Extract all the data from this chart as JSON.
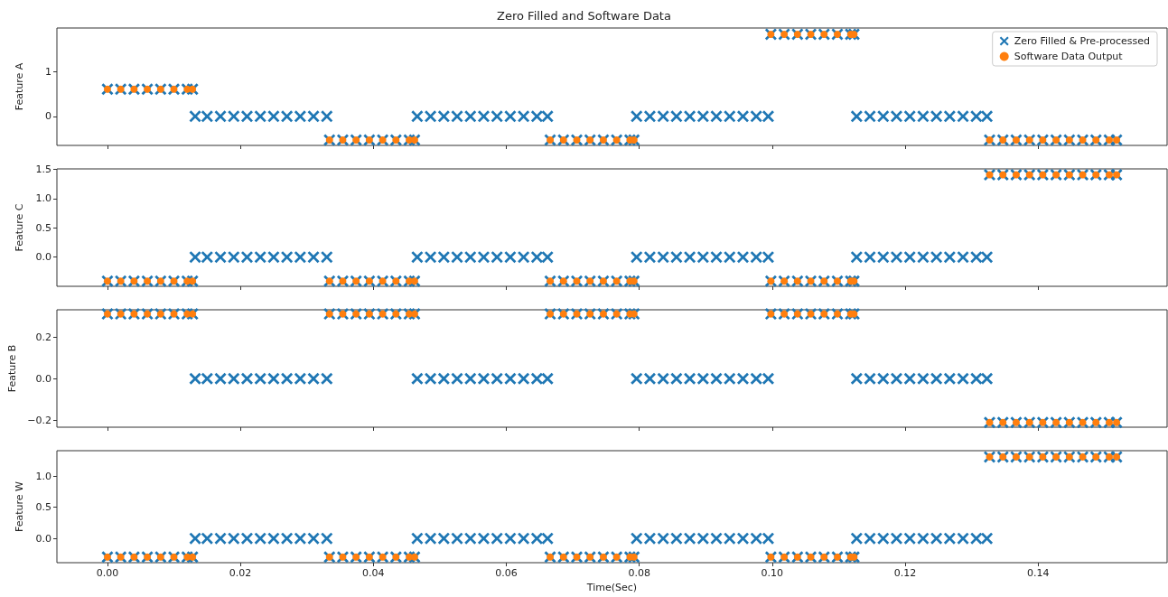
{
  "chart_data": [
    {
      "type": "scatter",
      "title": "Zero Filled and Software Data",
      "ylabel": "Feature A",
      "legend": "top right",
      "tick_labels": "y",
      "xlim": [
        -0.0076,
        0.1594
      ],
      "xticks": [
        {
          "value": 0,
          "label": null
        },
        {
          "value": 0.02,
          "label": null
        },
        {
          "value": 0.04,
          "label": null
        },
        {
          "value": 0.06,
          "label": null
        },
        {
          "value": 0.08,
          "label": null
        },
        {
          "value": 0.1,
          "label": null
        },
        {
          "value": 0.12,
          "label": null
        },
        {
          "value": 0.14,
          "label": null
        }
      ],
      "ylim": [
        -0.65,
        1.98
      ],
      "yticks": [
        0,
        1
      ],
      "series": [
        {
          "name": "Zero Filled & Pre-processed",
          "color": "#1f77b4",
          "marker": "cross",
          "x": [
            0,
            0.002,
            0.004,
            0.006,
            0.008,
            0.01,
            0.012,
            0.0128,
            0.0132,
            0.015,
            0.017,
            0.019,
            0.021,
            0.023,
            0.025,
            0.027,
            0.029,
            0.031,
            0.033,
            0.0334,
            0.0354,
            0.0374,
            0.0394,
            0.0414,
            0.0434,
            0.0454,
            0.0462,
            0.0466,
            0.0486,
            0.0506,
            0.0526,
            0.0546,
            0.0566,
            0.0586,
            0.0606,
            0.0626,
            0.0646,
            0.0662,
            0.0666,
            0.0686,
            0.0706,
            0.0726,
            0.0746,
            0.0766,
            0.0786,
            0.0792,
            0.0796,
            0.0816,
            0.0836,
            0.0856,
            0.0876,
            0.0896,
            0.0916,
            0.0936,
            0.0956,
            0.0976,
            0.0994,
            0.0998,
            0.1018,
            0.1038,
            0.1058,
            0.1078,
            0.1098,
            0.1118,
            0.1123,
            0.1127,
            0.1147,
            0.1167,
            0.1187,
            0.1207,
            0.1227,
            0.1247,
            0.1267,
            0.1287,
            0.1307,
            0.1323,
            0.1327,
            0.1347,
            0.1367,
            0.1387,
            0.1407,
            0.1427,
            0.1447,
            0.1467,
            0.1487,
            0.1507,
            0.1518
          ],
          "values": [
            0.61,
            0.61,
            0.61,
            0.61,
            0.61,
            0.61,
            0.61,
            0.61,
            0,
            0,
            0,
            0,
            0,
            0,
            0,
            0,
            0,
            0,
            0,
            -0.53,
            -0.53,
            -0.53,
            -0.53,
            -0.53,
            -0.53,
            -0.53,
            -0.53,
            0,
            0,
            0,
            0,
            0,
            0,
            0,
            0,
            0,
            0,
            0,
            -0.53,
            -0.53,
            -0.53,
            -0.53,
            -0.53,
            -0.53,
            -0.53,
            -0.53,
            0,
            0,
            0,
            0,
            0,
            0,
            0,
            0,
            0,
            0,
            0,
            1.84,
            1.84,
            1.84,
            1.84,
            1.84,
            1.84,
            1.84,
            1.84,
            0,
            0,
            0,
            0,
            0,
            0,
            0,
            0,
            0,
            0,
            0,
            -0.53,
            -0.53,
            -0.53,
            -0.53,
            -0.53,
            -0.53,
            -0.53,
            -0.53,
            -0.53,
            -0.53,
            -0.53
          ]
        },
        {
          "name": "Software Data Output",
          "color": "#ff7f0e",
          "marker": "circle",
          "x": [
            0,
            0.002,
            0.004,
            0.006,
            0.008,
            0.01,
            0.012,
            0.0128,
            0.0334,
            0.0354,
            0.0374,
            0.0394,
            0.0414,
            0.0434,
            0.0454,
            0.0462,
            0.0666,
            0.0686,
            0.0706,
            0.0726,
            0.0746,
            0.0766,
            0.0786,
            0.0792,
            0.0998,
            0.1018,
            0.1038,
            0.1058,
            0.1078,
            0.1098,
            0.1118,
            0.1123,
            0.1327,
            0.1347,
            0.1367,
            0.1387,
            0.1407,
            0.1427,
            0.1447,
            0.1467,
            0.1487,
            0.1507,
            0.1518
          ],
          "values": [
            0.61,
            0.61,
            0.61,
            0.61,
            0.61,
            0.61,
            0.61,
            0.61,
            -0.53,
            -0.53,
            -0.53,
            -0.53,
            -0.53,
            -0.53,
            -0.53,
            -0.53,
            -0.53,
            -0.53,
            -0.53,
            -0.53,
            -0.53,
            -0.53,
            -0.53,
            -0.53,
            1.84,
            1.84,
            1.84,
            1.84,
            1.84,
            1.84,
            1.84,
            1.84,
            -0.53,
            -0.53,
            -0.53,
            -0.53,
            -0.53,
            -0.53,
            -0.53,
            -0.53,
            -0.53,
            -0.53,
            -0.53
          ]
        }
      ]
    },
    {
      "type": "scatter",
      "ylabel": "Feature C",
      "tick_labels": "y",
      "xlim": [
        -0.0076,
        0.1594
      ],
      "xticks": [
        {
          "value": 0,
          "label": null
        },
        {
          "value": 0.02,
          "label": null
        },
        {
          "value": 0.04,
          "label": null
        },
        {
          "value": 0.06,
          "label": null
        },
        {
          "value": 0.08,
          "label": null
        },
        {
          "value": 0.1,
          "label": null
        },
        {
          "value": 0.12,
          "label": null
        },
        {
          "value": 0.14,
          "label": null
        }
      ],
      "ylim": [
        -0.5,
        1.51
      ],
      "yticks": [
        {
          "value": 0,
          "label": "0.0"
        },
        {
          "value": 0.5,
          "label": "0.5"
        },
        {
          "value": 1,
          "label": "1.0"
        },
        {
          "value": 1.5,
          "label": "1.5"
        }
      ],
      "series": [
        {
          "color": "#1f77b4",
          "marker": "cross",
          "x": [
            0,
            0.002,
            0.004,
            0.006,
            0.008,
            0.01,
            0.012,
            0.0128,
            0.0132,
            0.015,
            0.017,
            0.019,
            0.021,
            0.023,
            0.025,
            0.027,
            0.029,
            0.031,
            0.033,
            0.0334,
            0.0354,
            0.0374,
            0.0394,
            0.0414,
            0.0434,
            0.0454,
            0.0462,
            0.0466,
            0.0486,
            0.0506,
            0.0526,
            0.0546,
            0.0566,
            0.0586,
            0.0606,
            0.0626,
            0.0646,
            0.0662,
            0.0666,
            0.0686,
            0.0706,
            0.0726,
            0.0746,
            0.0766,
            0.0786,
            0.0792,
            0.0796,
            0.0816,
            0.0836,
            0.0856,
            0.0876,
            0.0896,
            0.0916,
            0.0936,
            0.0956,
            0.0976,
            0.0994,
            0.0998,
            0.1018,
            0.1038,
            0.1058,
            0.1078,
            0.1098,
            0.1118,
            0.1123,
            0.1127,
            0.1147,
            0.1167,
            0.1187,
            0.1207,
            0.1227,
            0.1247,
            0.1267,
            0.1287,
            0.1307,
            0.1323,
            0.1327,
            0.1347,
            0.1367,
            0.1387,
            0.1407,
            0.1427,
            0.1447,
            0.1467,
            0.1487,
            0.1507,
            0.1518
          ],
          "values": [
            -0.41,
            -0.41,
            -0.41,
            -0.41,
            -0.41,
            -0.41,
            -0.41,
            -0.41,
            0,
            0,
            0,
            0,
            0,
            0,
            0,
            0,
            0,
            0,
            0,
            -0.41,
            -0.41,
            -0.41,
            -0.41,
            -0.41,
            -0.41,
            -0.41,
            -0.41,
            0,
            0,
            0,
            0,
            0,
            0,
            0,
            0,
            0,
            0,
            0,
            -0.41,
            -0.41,
            -0.41,
            -0.41,
            -0.41,
            -0.41,
            -0.41,
            -0.41,
            0,
            0,
            0,
            0,
            0,
            0,
            0,
            0,
            0,
            0,
            0,
            -0.41,
            -0.41,
            -0.41,
            -0.41,
            -0.41,
            -0.41,
            -0.41,
            -0.41,
            0,
            0,
            0,
            0,
            0,
            0,
            0,
            0,
            0,
            0,
            0,
            1.41,
            1.41,
            1.41,
            1.41,
            1.41,
            1.41,
            1.41,
            1.41,
            1.41,
            1.41,
            1.41
          ]
        },
        {
          "color": "#ff7f0e",
          "marker": "circle",
          "x": [
            0,
            0.002,
            0.004,
            0.006,
            0.008,
            0.01,
            0.012,
            0.0128,
            0.0334,
            0.0354,
            0.0374,
            0.0394,
            0.0414,
            0.0434,
            0.0454,
            0.0462,
            0.0666,
            0.0686,
            0.0706,
            0.0726,
            0.0746,
            0.0766,
            0.0786,
            0.0792,
            0.0998,
            0.1018,
            0.1038,
            0.1058,
            0.1078,
            0.1098,
            0.1118,
            0.1123,
            0.1327,
            0.1347,
            0.1367,
            0.1387,
            0.1407,
            0.1427,
            0.1447,
            0.1467,
            0.1487,
            0.1507,
            0.1518
          ],
          "values": [
            -0.41,
            -0.41,
            -0.41,
            -0.41,
            -0.41,
            -0.41,
            -0.41,
            -0.41,
            -0.41,
            -0.41,
            -0.41,
            -0.41,
            -0.41,
            -0.41,
            -0.41,
            -0.41,
            -0.41,
            -0.41,
            -0.41,
            -0.41,
            -0.41,
            -0.41,
            -0.41,
            -0.41,
            -0.41,
            -0.41,
            -0.41,
            -0.41,
            -0.41,
            -0.41,
            -0.41,
            -0.41,
            1.41,
            1.41,
            1.41,
            1.41,
            1.41,
            1.41,
            1.41,
            1.41,
            1.41,
            1.41,
            1.41
          ]
        }
      ]
    },
    {
      "type": "scatter",
      "ylabel": "Feature B",
      "tick_labels": "y",
      "xlim": [
        -0.0076,
        0.1594
      ],
      "xticks": [
        {
          "value": 0,
          "label": null
        },
        {
          "value": 0.02,
          "label": null
        },
        {
          "value": 0.04,
          "label": null
        },
        {
          "value": 0.06,
          "label": null
        },
        {
          "value": 0.08,
          "label": null
        },
        {
          "value": 0.1,
          "label": null
        },
        {
          "value": 0.12,
          "label": null
        },
        {
          "value": 0.14,
          "label": null
        }
      ],
      "ylim": [
        -0.233,
        0.33
      ],
      "yticks": [
        {
          "value": -0.2,
          "label": "−0.2"
        },
        {
          "value": 0,
          "label": "0.0"
        },
        {
          "value": 0.2,
          "label": "0.2"
        }
      ],
      "series": [
        {
          "color": "#1f77b4",
          "marker": "cross",
          "x": [
            0,
            0.002,
            0.004,
            0.006,
            0.008,
            0.01,
            0.012,
            0.0128,
            0.0132,
            0.015,
            0.017,
            0.019,
            0.021,
            0.023,
            0.025,
            0.027,
            0.029,
            0.031,
            0.033,
            0.0334,
            0.0354,
            0.0374,
            0.0394,
            0.0414,
            0.0434,
            0.0454,
            0.0462,
            0.0466,
            0.0486,
            0.0506,
            0.0526,
            0.0546,
            0.0566,
            0.0586,
            0.0606,
            0.0626,
            0.0646,
            0.0662,
            0.0666,
            0.0686,
            0.0706,
            0.0726,
            0.0746,
            0.0766,
            0.0786,
            0.0792,
            0.0796,
            0.0816,
            0.0836,
            0.0856,
            0.0876,
            0.0896,
            0.0916,
            0.0936,
            0.0956,
            0.0976,
            0.0994,
            0.0998,
            0.1018,
            0.1038,
            0.1058,
            0.1078,
            0.1098,
            0.1118,
            0.1123,
            0.1127,
            0.1147,
            0.1167,
            0.1187,
            0.1207,
            0.1227,
            0.1247,
            0.1267,
            0.1287,
            0.1307,
            0.1323,
            0.1327,
            0.1347,
            0.1367,
            0.1387,
            0.1407,
            0.1427,
            0.1447,
            0.1467,
            0.1487,
            0.1507,
            0.1518
          ],
          "values": [
            0.31,
            0.31,
            0.31,
            0.31,
            0.31,
            0.31,
            0.31,
            0.31,
            0,
            0,
            0,
            0,
            0,
            0,
            0,
            0,
            0,
            0,
            0,
            0.31,
            0.31,
            0.31,
            0.31,
            0.31,
            0.31,
            0.31,
            0.31,
            0,
            0,
            0,
            0,
            0,
            0,
            0,
            0,
            0,
            0,
            0,
            0.31,
            0.31,
            0.31,
            0.31,
            0.31,
            0.31,
            0.31,
            0.31,
            0,
            0,
            0,
            0,
            0,
            0,
            0,
            0,
            0,
            0,
            0,
            0.31,
            0.31,
            0.31,
            0.31,
            0.31,
            0.31,
            0.31,
            0.31,
            0,
            0,
            0,
            0,
            0,
            0,
            0,
            0,
            0,
            0,
            0,
            -0.21,
            -0.21,
            -0.21,
            -0.21,
            -0.21,
            -0.21,
            -0.21,
            -0.21,
            -0.21,
            -0.21,
            -0.21
          ]
        },
        {
          "color": "#ff7f0e",
          "marker": "circle",
          "x": [
            0,
            0.002,
            0.004,
            0.006,
            0.008,
            0.01,
            0.012,
            0.0128,
            0.0334,
            0.0354,
            0.0374,
            0.0394,
            0.0414,
            0.0434,
            0.0454,
            0.0462,
            0.0666,
            0.0686,
            0.0706,
            0.0726,
            0.0746,
            0.0766,
            0.0786,
            0.0792,
            0.0998,
            0.1018,
            0.1038,
            0.1058,
            0.1078,
            0.1098,
            0.1118,
            0.1123,
            0.1327,
            0.1347,
            0.1367,
            0.1387,
            0.1407,
            0.1427,
            0.1447,
            0.1467,
            0.1487,
            0.1507,
            0.1518
          ],
          "values": [
            0.31,
            0.31,
            0.31,
            0.31,
            0.31,
            0.31,
            0.31,
            0.31,
            0.31,
            0.31,
            0.31,
            0.31,
            0.31,
            0.31,
            0.31,
            0.31,
            0.31,
            0.31,
            0.31,
            0.31,
            0.31,
            0.31,
            0.31,
            0.31,
            0.31,
            0.31,
            0.31,
            0.31,
            0.31,
            0.31,
            0.31,
            0.31,
            -0.21,
            -0.21,
            -0.21,
            -0.21,
            -0.21,
            -0.21,
            -0.21,
            -0.21,
            -0.21,
            -0.21,
            -0.21
          ]
        }
      ]
    },
    {
      "type": "scatter",
      "ylabel": "Feature W",
      "xlabel": "Time(Sec)",
      "xlim": [
        -0.0076,
        0.1594
      ],
      "xticks": [
        {
          "value": 0,
          "label": "0.00"
        },
        {
          "value": 0.02,
          "label": "0.02"
        },
        {
          "value": 0.04,
          "label": "0.04"
        },
        {
          "value": 0.06,
          "label": "0.06"
        },
        {
          "value": 0.08,
          "label": "0.08"
        },
        {
          "value": 0.1,
          "label": "0.10"
        },
        {
          "value": 0.12,
          "label": "0.12"
        },
        {
          "value": 0.14,
          "label": "0.14"
        }
      ],
      "ylim": [
        -0.39,
        1.41
      ],
      "yticks": [
        {
          "value": 0,
          "label": "0.0"
        },
        {
          "value": 0.5,
          "label": "0.5"
        },
        {
          "value": 1,
          "label": "1.0"
        }
      ],
      "series": [
        {
          "color": "#1f77b4",
          "marker": "cross",
          "x": [
            0,
            0.002,
            0.004,
            0.006,
            0.008,
            0.01,
            0.012,
            0.0128,
            0.0132,
            0.015,
            0.017,
            0.019,
            0.021,
            0.023,
            0.025,
            0.027,
            0.029,
            0.031,
            0.033,
            0.0334,
            0.0354,
            0.0374,
            0.0394,
            0.0414,
            0.0434,
            0.0454,
            0.0462,
            0.0466,
            0.0486,
            0.0506,
            0.0526,
            0.0546,
            0.0566,
            0.0586,
            0.0606,
            0.0626,
            0.0646,
            0.0662,
            0.0666,
            0.0686,
            0.0706,
            0.0726,
            0.0746,
            0.0766,
            0.0786,
            0.0792,
            0.0796,
            0.0816,
            0.0836,
            0.0856,
            0.0876,
            0.0896,
            0.0916,
            0.0936,
            0.0956,
            0.0976,
            0.0994,
            0.0998,
            0.1018,
            0.1038,
            0.1058,
            0.1078,
            0.1098,
            0.1118,
            0.1123,
            0.1127,
            0.1147,
            0.1167,
            0.1187,
            0.1207,
            0.1227,
            0.1247,
            0.1267,
            0.1287,
            0.1307,
            0.1323,
            0.1327,
            0.1347,
            0.1367,
            0.1387,
            0.1407,
            0.1427,
            0.1447,
            0.1467,
            0.1487,
            0.1507,
            0.1518
          ],
          "values": [
            -0.3,
            -0.3,
            -0.3,
            -0.3,
            -0.3,
            -0.3,
            -0.3,
            -0.3,
            0,
            0,
            0,
            0,
            0,
            0,
            0,
            0,
            0,
            0,
            0,
            -0.3,
            -0.3,
            -0.3,
            -0.3,
            -0.3,
            -0.3,
            -0.3,
            -0.3,
            0,
            0,
            0,
            0,
            0,
            0,
            0,
            0,
            0,
            0,
            0,
            -0.3,
            -0.3,
            -0.3,
            -0.3,
            -0.3,
            -0.3,
            -0.3,
            -0.3,
            0,
            0,
            0,
            0,
            0,
            0,
            0,
            0,
            0,
            0,
            0,
            -0.3,
            -0.3,
            -0.3,
            -0.3,
            -0.3,
            -0.3,
            -0.3,
            -0.3,
            0,
            0,
            0,
            0,
            0,
            0,
            0,
            0,
            0,
            0,
            0,
            1.31,
            1.31,
            1.31,
            1.31,
            1.31,
            1.31,
            1.31,
            1.31,
            1.31,
            1.31,
            1.31
          ]
        },
        {
          "color": "#ff7f0e",
          "marker": "circle",
          "x": [
            0,
            0.002,
            0.004,
            0.006,
            0.008,
            0.01,
            0.012,
            0.0128,
            0.0334,
            0.0354,
            0.0374,
            0.0394,
            0.0414,
            0.0434,
            0.0454,
            0.0462,
            0.0666,
            0.0686,
            0.0706,
            0.0726,
            0.0746,
            0.0766,
            0.0786,
            0.0792,
            0.0998,
            0.1018,
            0.1038,
            0.1058,
            0.1078,
            0.1098,
            0.1118,
            0.1123,
            0.1327,
            0.1347,
            0.1367,
            0.1387,
            0.1407,
            0.1427,
            0.1447,
            0.1467,
            0.1487,
            0.1507,
            0.1518
          ],
          "values": [
            -0.3,
            -0.3,
            -0.3,
            -0.3,
            -0.3,
            -0.3,
            -0.3,
            -0.3,
            -0.3,
            -0.3,
            -0.3,
            -0.3,
            -0.3,
            -0.3,
            -0.3,
            -0.3,
            -0.3,
            -0.3,
            -0.3,
            -0.3,
            -0.3,
            -0.3,
            -0.3,
            -0.3,
            -0.3,
            -0.3,
            -0.3,
            -0.3,
            -0.3,
            -0.3,
            -0.3,
            -0.3,
            1.31,
            1.31,
            1.31,
            1.31,
            1.31,
            1.31,
            1.31,
            1.31,
            1.31,
            1.31,
            1.31
          ]
        }
      ]
    }
  ]
}
